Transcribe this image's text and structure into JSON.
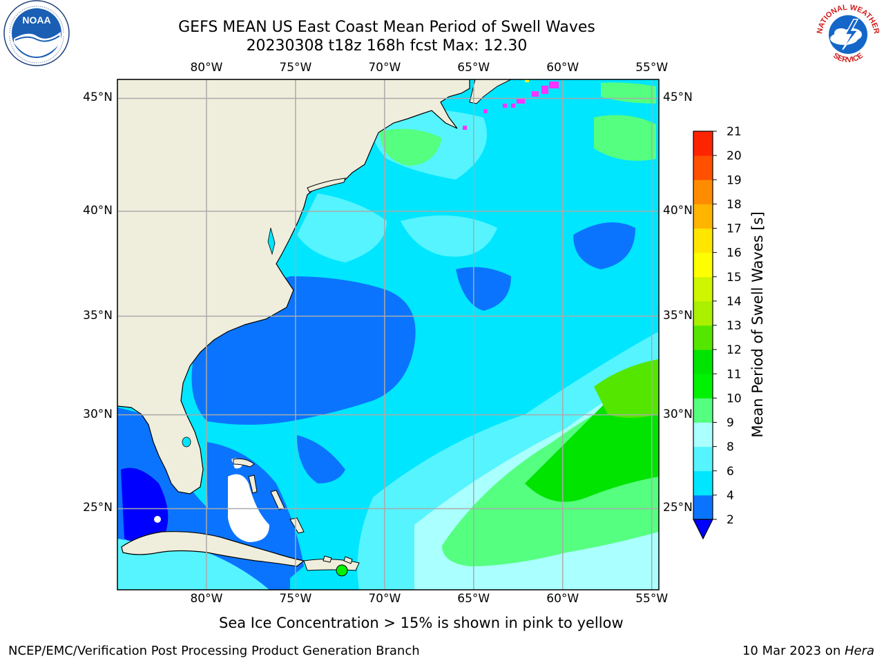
{
  "title": {
    "line1": "GEFS MEAN US East Coast Mean Period of Swell Waves",
    "line2": "20230308 t18z 168h fcst   Max: 12.30"
  },
  "map": {
    "lon_ticks": [
      "80°W",
      "75°W",
      "70°W",
      "65°W",
      "60°W",
      "55°W"
    ],
    "lon_values": [
      -80,
      -75,
      -70,
      -65,
      -60,
      -55
    ],
    "lat_ticks": [
      "45°N",
      "40°N",
      "35°N",
      "30°N",
      "25°N"
    ],
    "lat_values": [
      45,
      40,
      35,
      30,
      25
    ],
    "lon_range": [
      -85,
      -54.6
    ],
    "lat_range": [
      20.5,
      45.8
    ],
    "colors": {
      "land": "#efeddc",
      "grid": "#aaaaaa",
      "coast": "#000000"
    }
  },
  "colorbar": {
    "label": "Mean Period of Swell Waves [s]",
    "levels": [
      "2",
      "4",
      "6",
      "8",
      "9",
      "10",
      "11",
      "12",
      "13",
      "14",
      "15",
      "16",
      "17",
      "18",
      "19",
      "20",
      "21"
    ],
    "colors": [
      "#0000ff",
      "#0b74ff",
      "#00e6ff",
      "#55f4ff",
      "#aaffff",
      "#55ff7f",
      "#00f200",
      "#00e400",
      "#55e600",
      "#aaf000",
      "#cff500",
      "#ffff00",
      "#ffe600",
      "#ffb400",
      "#ff8c00",
      "#ff5000",
      "#ff2400",
      "#ff0000"
    ]
  },
  "note": "Sea Ice Concentration > 15% is shown in pink to yellow",
  "footer": {
    "left": "NCEP/EMC/Verification Post Processing Product Generation Branch",
    "date": "10 Mar 2023 on ",
    "machine": "Hera"
  },
  "logos": {
    "left": "NOAA",
    "right_top": "NATIONAL WEATHER",
    "right_bottom": "SERVICE"
  }
}
